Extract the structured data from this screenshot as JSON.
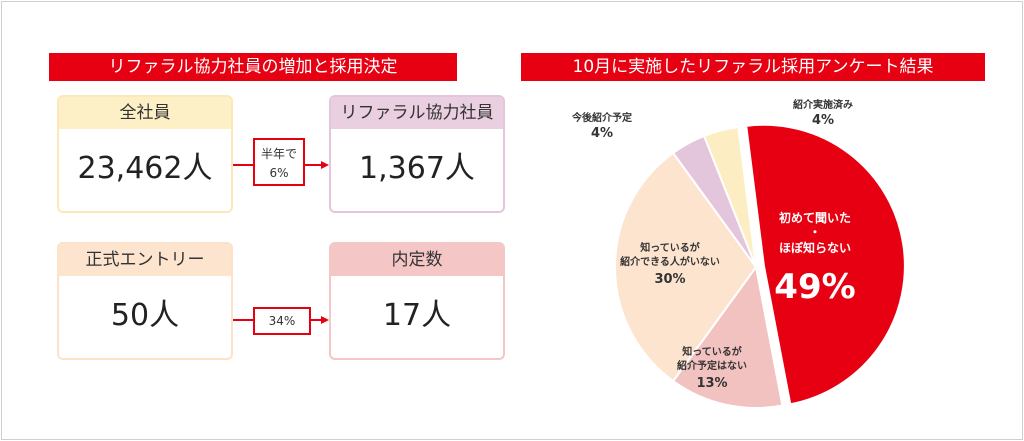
{
  "left": {
    "banner": "リファラル協力社員の増加と採用決定",
    "cards": {
      "all_employees": {
        "label": "全社員",
        "value": "23,462人"
      },
      "referral_cooperators": {
        "label": "リファラル協力社員",
        "value": "1,367人"
      },
      "formal_entries": {
        "label": "正式エントリー",
        "value": "50人"
      },
      "offers": {
        "label": "内定数",
        "value": "17人"
      }
    },
    "arrows": {
      "top": {
        "line1": "半年で",
        "line2": "6%"
      },
      "bottom": {
        "line1": "34%"
      }
    }
  },
  "right": {
    "banner": "10月に実施したリファラル採用アンケート結果"
  },
  "colors": {
    "accent": "#e60012",
    "slice_first_time": "#e60012",
    "slice_know_no_plan": "#f2c2c0",
    "slice_know_cannot": "#fde4cf",
    "slice_plan": "#e3c6db",
    "slice_done": "#fcedc3"
  },
  "chart_data": {
    "type": "pie",
    "title": "10月に実施したリファラル採用アンケート結果",
    "slices": [
      {
        "label": "初めて聞いた・ほぼ知らない",
        "label_lines": [
          "初めて聞いた",
          "・",
          "ほぼ知らない"
        ],
        "value": 49,
        "value_label": "49%"
      },
      {
        "label": "知っているが紹介予定はない",
        "label_lines": [
          "知っているが",
          "紹介予定はない"
        ],
        "value": 13,
        "value_label": "13%"
      },
      {
        "label": "知っているが紹介できる人がいない",
        "label_lines": [
          "知っているが",
          "紹介できる人がいない"
        ],
        "value": 30,
        "value_label": "30%"
      },
      {
        "label": "今後紹介予定",
        "label_lines": [
          "今後紹介予定"
        ],
        "value": 4,
        "value_label": "4%"
      },
      {
        "label": "紹介実施済み",
        "label_lines": [
          "紹介実施済み"
        ],
        "value": 4,
        "value_label": "4%"
      }
    ]
  }
}
